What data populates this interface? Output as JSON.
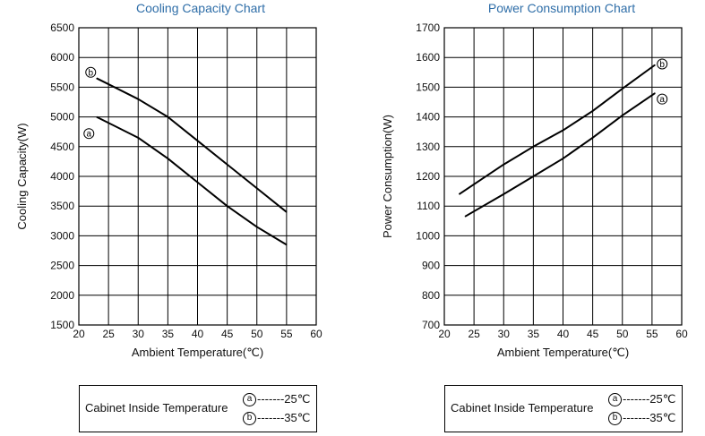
{
  "chart_data": [
    {
      "type": "line",
      "title": "Cooling Capacity Chart",
      "xlabel": "Ambient Temperature(℃)",
      "ylabel": "Cooling  Capacity(W)",
      "xlim": [
        20,
        60
      ],
      "ylim": [
        1500,
        6500
      ],
      "xticks": [
        "20",
        "25",
        "30",
        "35",
        "40",
        "45",
        "50",
        "55",
        "60"
      ],
      "yticks": [
        "1500",
        "2000",
        "2500",
        "3000",
        "3500",
        "4000",
        "4500",
        "5000",
        "5500",
        "6000",
        "6500"
      ],
      "grid": true,
      "series": [
        {
          "marker": "b",
          "x": [
            23,
            30,
            35,
            40,
            45,
            50,
            55
          ],
          "values": [
            5650,
            5300,
            5000,
            4600,
            4200,
            3800,
            3400
          ]
        },
        {
          "marker": "a",
          "x": [
            23,
            30,
            35,
            40,
            45,
            50,
            55
          ],
          "values": [
            5000,
            4650,
            4300,
            3900,
            3500,
            3150,
            2850
          ]
        }
      ],
      "legend": {
        "label": "Cabinet Inside Temperature",
        "entries": [
          {
            "marker": "a",
            "text": "-------25℃"
          },
          {
            "marker": "b",
            "text": "-------35℃"
          }
        ]
      }
    },
    {
      "type": "line",
      "title": "Power Consumption Chart",
      "xlabel": "Ambient Temperature(℃)",
      "ylabel": "Power Consumption(W)",
      "xlim": [
        20,
        60
      ],
      "ylim": [
        700,
        1700
      ],
      "xticks": [
        "20",
        "25",
        "30",
        "35",
        "40",
        "45",
        "50",
        "55",
        "60"
      ],
      "yticks": [
        "700",
        "800",
        "900",
        "1000",
        "1100",
        "1200",
        "1300",
        "1400",
        "1500",
        "1600",
        "1700"
      ],
      "grid": true,
      "series": [
        {
          "marker": "b",
          "x": [
            22.5,
            30,
            35,
            40,
            45,
            50,
            55.5
          ],
          "values": [
            1140,
            1240,
            1300,
            1355,
            1420,
            1495,
            1575
          ]
        },
        {
          "marker": "a",
          "x": [
            23.5,
            30,
            35,
            40,
            45,
            50,
            55.5
          ],
          "values": [
            1065,
            1140,
            1200,
            1260,
            1330,
            1405,
            1480
          ]
        }
      ],
      "legend": {
        "label": "Cabinet Inside Temperature",
        "entries": [
          {
            "marker": "a",
            "text": "-------25℃"
          },
          {
            "marker": "b",
            "text": "-------35℃"
          }
        ]
      }
    }
  ]
}
